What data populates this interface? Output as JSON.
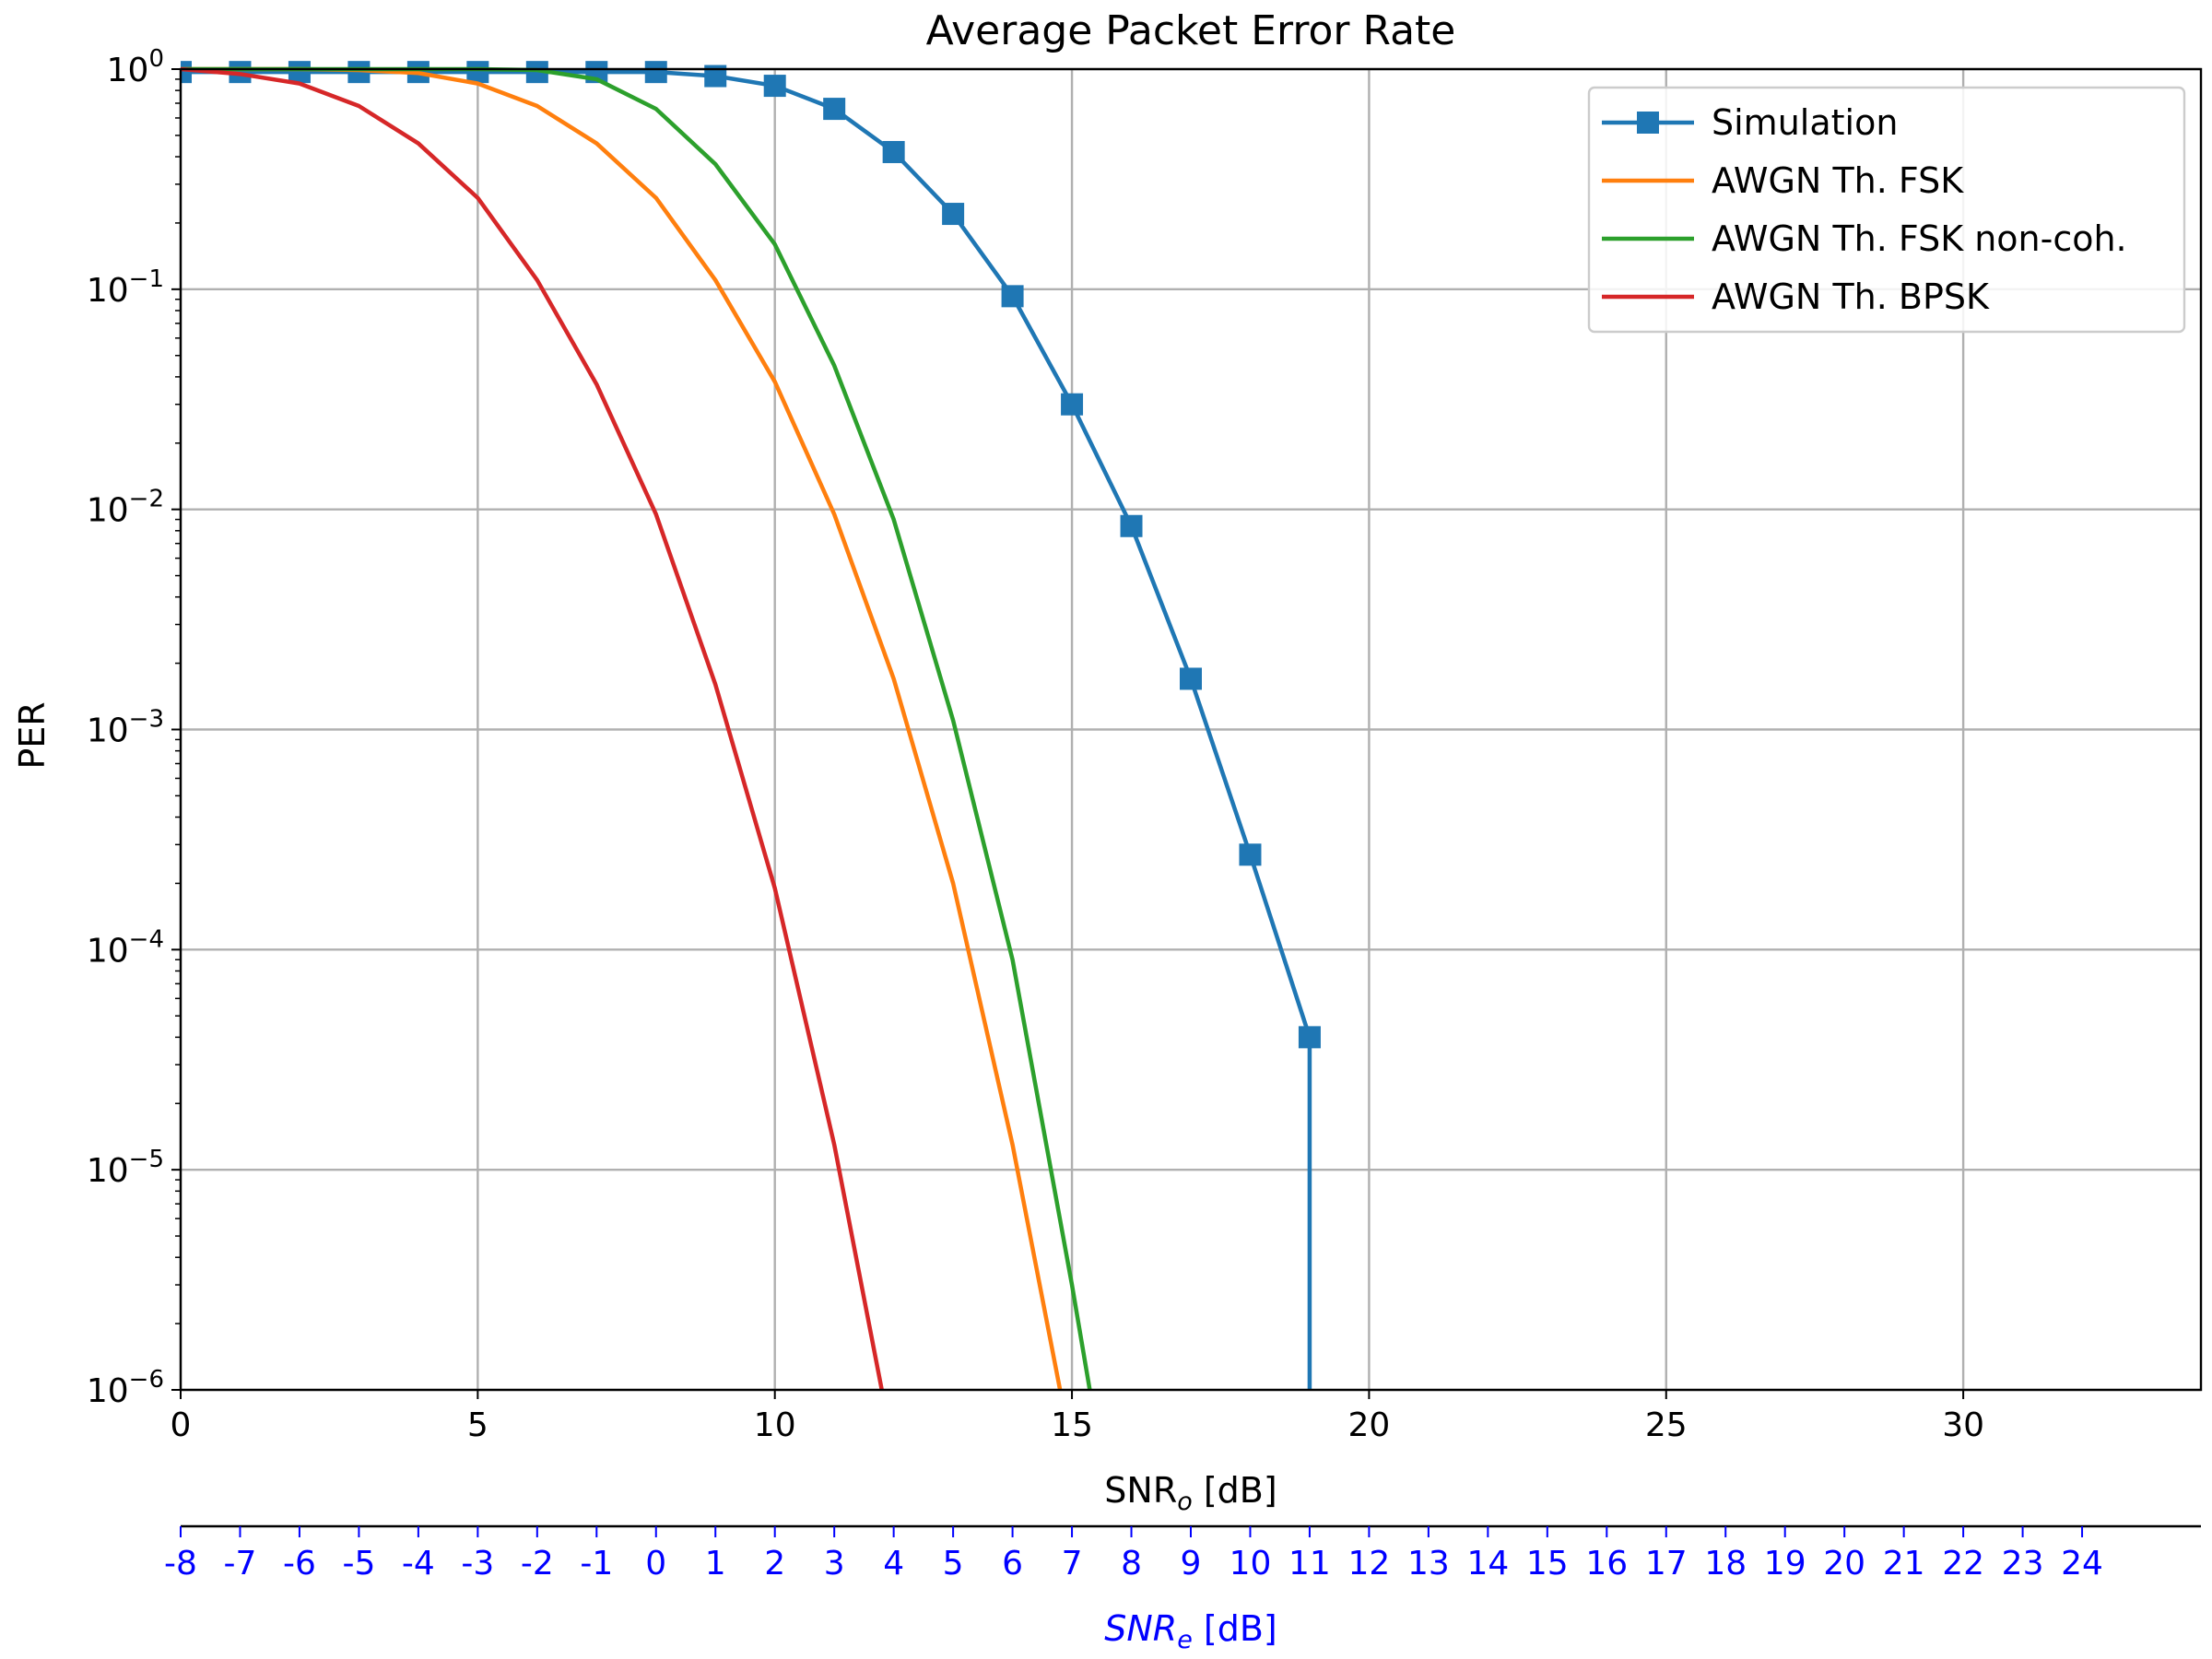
{
  "chart_data": {
    "type": "line",
    "title": "Average Packet Error Rate",
    "xlabel": "SNR",
    "xlabel_sub": "o",
    "xlabel_unit": "[dB]",
    "ylabel": "PER",
    "xlim": [
      0,
      34
    ],
    "ylim": [
      1e-06,
      1
    ],
    "yscale": "log",
    "grid": true,
    "legend_position": "top-right",
    "x_ticks": [
      "0",
      "5",
      "10",
      "15",
      "20",
      "25",
      "30"
    ],
    "y_ticks": [
      {
        "base": "10",
        "exp": "0"
      },
      {
        "base": "10",
        "exp": "−1"
      },
      {
        "base": "10",
        "exp": "−2"
      },
      {
        "base": "10",
        "exp": "−3"
      },
      {
        "base": "10",
        "exp": "−4"
      },
      {
        "base": "10",
        "exp": "−5"
      },
      {
        "base": "10",
        "exp": "−6"
      }
    ],
    "secondary_x_axis": {
      "label": "SNR",
      "label_sub": "e",
      "label_unit": "[dB]",
      "color": "#0000ff",
      "ticks": [
        "-8",
        "-7",
        "-6",
        "-5",
        "-4",
        "-3",
        "-2",
        "-1",
        "0",
        "1",
        "2",
        "3",
        "4",
        "5",
        "6",
        "7",
        "8",
        "9",
        "10",
        "11",
        "12",
        "13",
        "14",
        "15",
        "16",
        "17",
        "18",
        "19",
        "20",
        "21",
        "22",
        "23",
        "24"
      ],
      "offset": 8
    },
    "series": [
      {
        "name": "Simulation",
        "color": "#1f77b4",
        "marker": "square",
        "x": [
          0,
          1,
          2,
          3,
          4,
          5,
          6,
          7,
          8,
          9,
          10,
          11,
          12,
          13,
          14,
          15,
          16,
          17,
          18,
          19,
          19
        ],
        "y": [
          0.97,
          0.97,
          0.97,
          0.97,
          0.97,
          0.97,
          0.97,
          0.97,
          0.97,
          0.93,
          0.84,
          0.66,
          0.42,
          0.22,
          0.093,
          0.03,
          0.0084,
          0.0017,
          0.00027,
          4e-05,
          1e-06
        ],
        "marker_count": 20
      },
      {
        "name": "AWGN Th. FSK",
        "color": "#ff7f0e",
        "x": [
          0,
          1,
          2,
          3,
          4,
          5,
          6,
          7,
          8,
          9,
          10,
          11,
          12,
          13,
          14,
          14.8
        ],
        "y": [
          1,
          1,
          1,
          0.99,
          0.96,
          0.86,
          0.68,
          0.46,
          0.26,
          0.11,
          0.038,
          0.0095,
          0.0017,
          0.0002,
          1.3e-05,
          1e-06
        ]
      },
      {
        "name": "AWGN Th. FSK non-coh.",
        "color": "#2ca02c",
        "x": [
          0,
          1,
          2,
          3,
          4,
          5,
          6,
          7,
          8,
          9,
          10,
          11,
          12,
          13,
          14,
          15,
          15.3
        ],
        "y": [
          1,
          1,
          1,
          1,
          1,
          1,
          0.99,
          0.9,
          0.66,
          0.37,
          0.16,
          0.045,
          0.009,
          0.0011,
          9e-05,
          3e-06,
          1e-06
        ]
      },
      {
        "name": "AWGN Th. BPSK",
        "color": "#d62728",
        "x": [
          0,
          1,
          2,
          3,
          4,
          5,
          6,
          7,
          8,
          9,
          10,
          11,
          11.8
        ],
        "y": [
          1,
          0.95,
          0.86,
          0.68,
          0.46,
          0.26,
          0.11,
          0.037,
          0.0095,
          0.0016,
          0.00019,
          1.3e-05,
          1e-06
        ]
      }
    ]
  }
}
